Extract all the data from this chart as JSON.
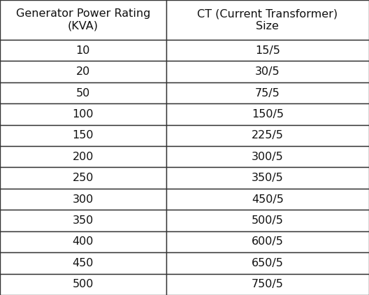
{
  "col1_header_line1": "Generator Power Rating",
  "col1_header_line2": "(KVA)",
  "col2_header_line1": "CT (Current Transformer)",
  "col2_header_line2": "Size",
  "rows": [
    [
      "10",
      "15/5"
    ],
    [
      "20",
      "30/5"
    ],
    [
      "50",
      "75/5"
    ],
    [
      "100",
      "150/5"
    ],
    [
      "150",
      "225/5"
    ],
    [
      "200",
      "300/5"
    ],
    [
      "250",
      "350/5"
    ],
    [
      "300",
      "450/5"
    ],
    [
      "350",
      "500/5"
    ],
    [
      "400",
      "600/5"
    ],
    [
      "450",
      "650/5"
    ],
    [
      "500",
      "750/5"
    ]
  ],
  "background_color": "#ffffff",
  "border_color": "#333333",
  "text_color": "#111111",
  "font_size": 11.5,
  "header_font_size": 11.5,
  "fig_width": 5.28,
  "fig_height": 4.22,
  "dpi": 100
}
